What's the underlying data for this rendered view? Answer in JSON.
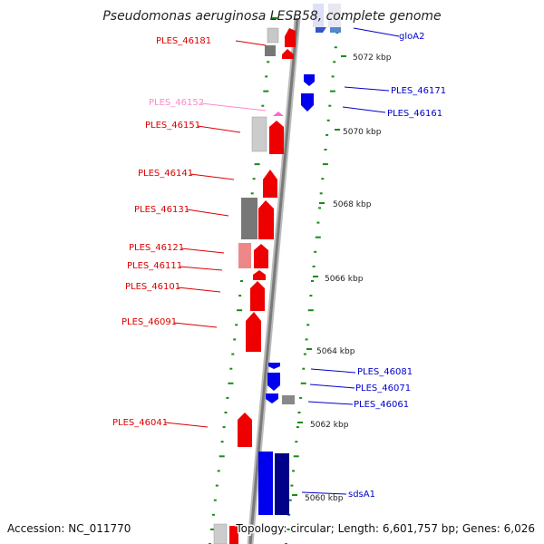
{
  "title": "Pseudomonas aeruginosa LESB58, complete genome",
  "ticks": [
    "5072 kbp",
    "5070 kbp",
    "5068 kbp",
    "5066 kbp",
    "5064 kbp",
    "5062 kbp",
    "5060 kbp"
  ],
  "genes": [
    "PLES_46181",
    "gloA2",
    "PLES_46171",
    "PLES_46152",
    "PLES_46161",
    "PLES_46151",
    "PLES_46141",
    "PLES_46131",
    "PLES_46121",
    "PLES_46111",
    "PLES_46101",
    "PLES_46091",
    "PLES_46081",
    "PLES_46071",
    "PLES_46061",
    "PLES_46041",
    "sdsA1"
  ],
  "footer": {
    "accession": "Accession: NC_011770",
    "topology": "Topology: circular; Length: 6,601,757 bp; Genes: 6,026"
  },
  "colors": {
    "forward_strand": "#ee0000",
    "reverse_strand": "#0000ee",
    "guide_track": "#1a8a1a",
    "backbone": "#7a7a7a"
  }
}
